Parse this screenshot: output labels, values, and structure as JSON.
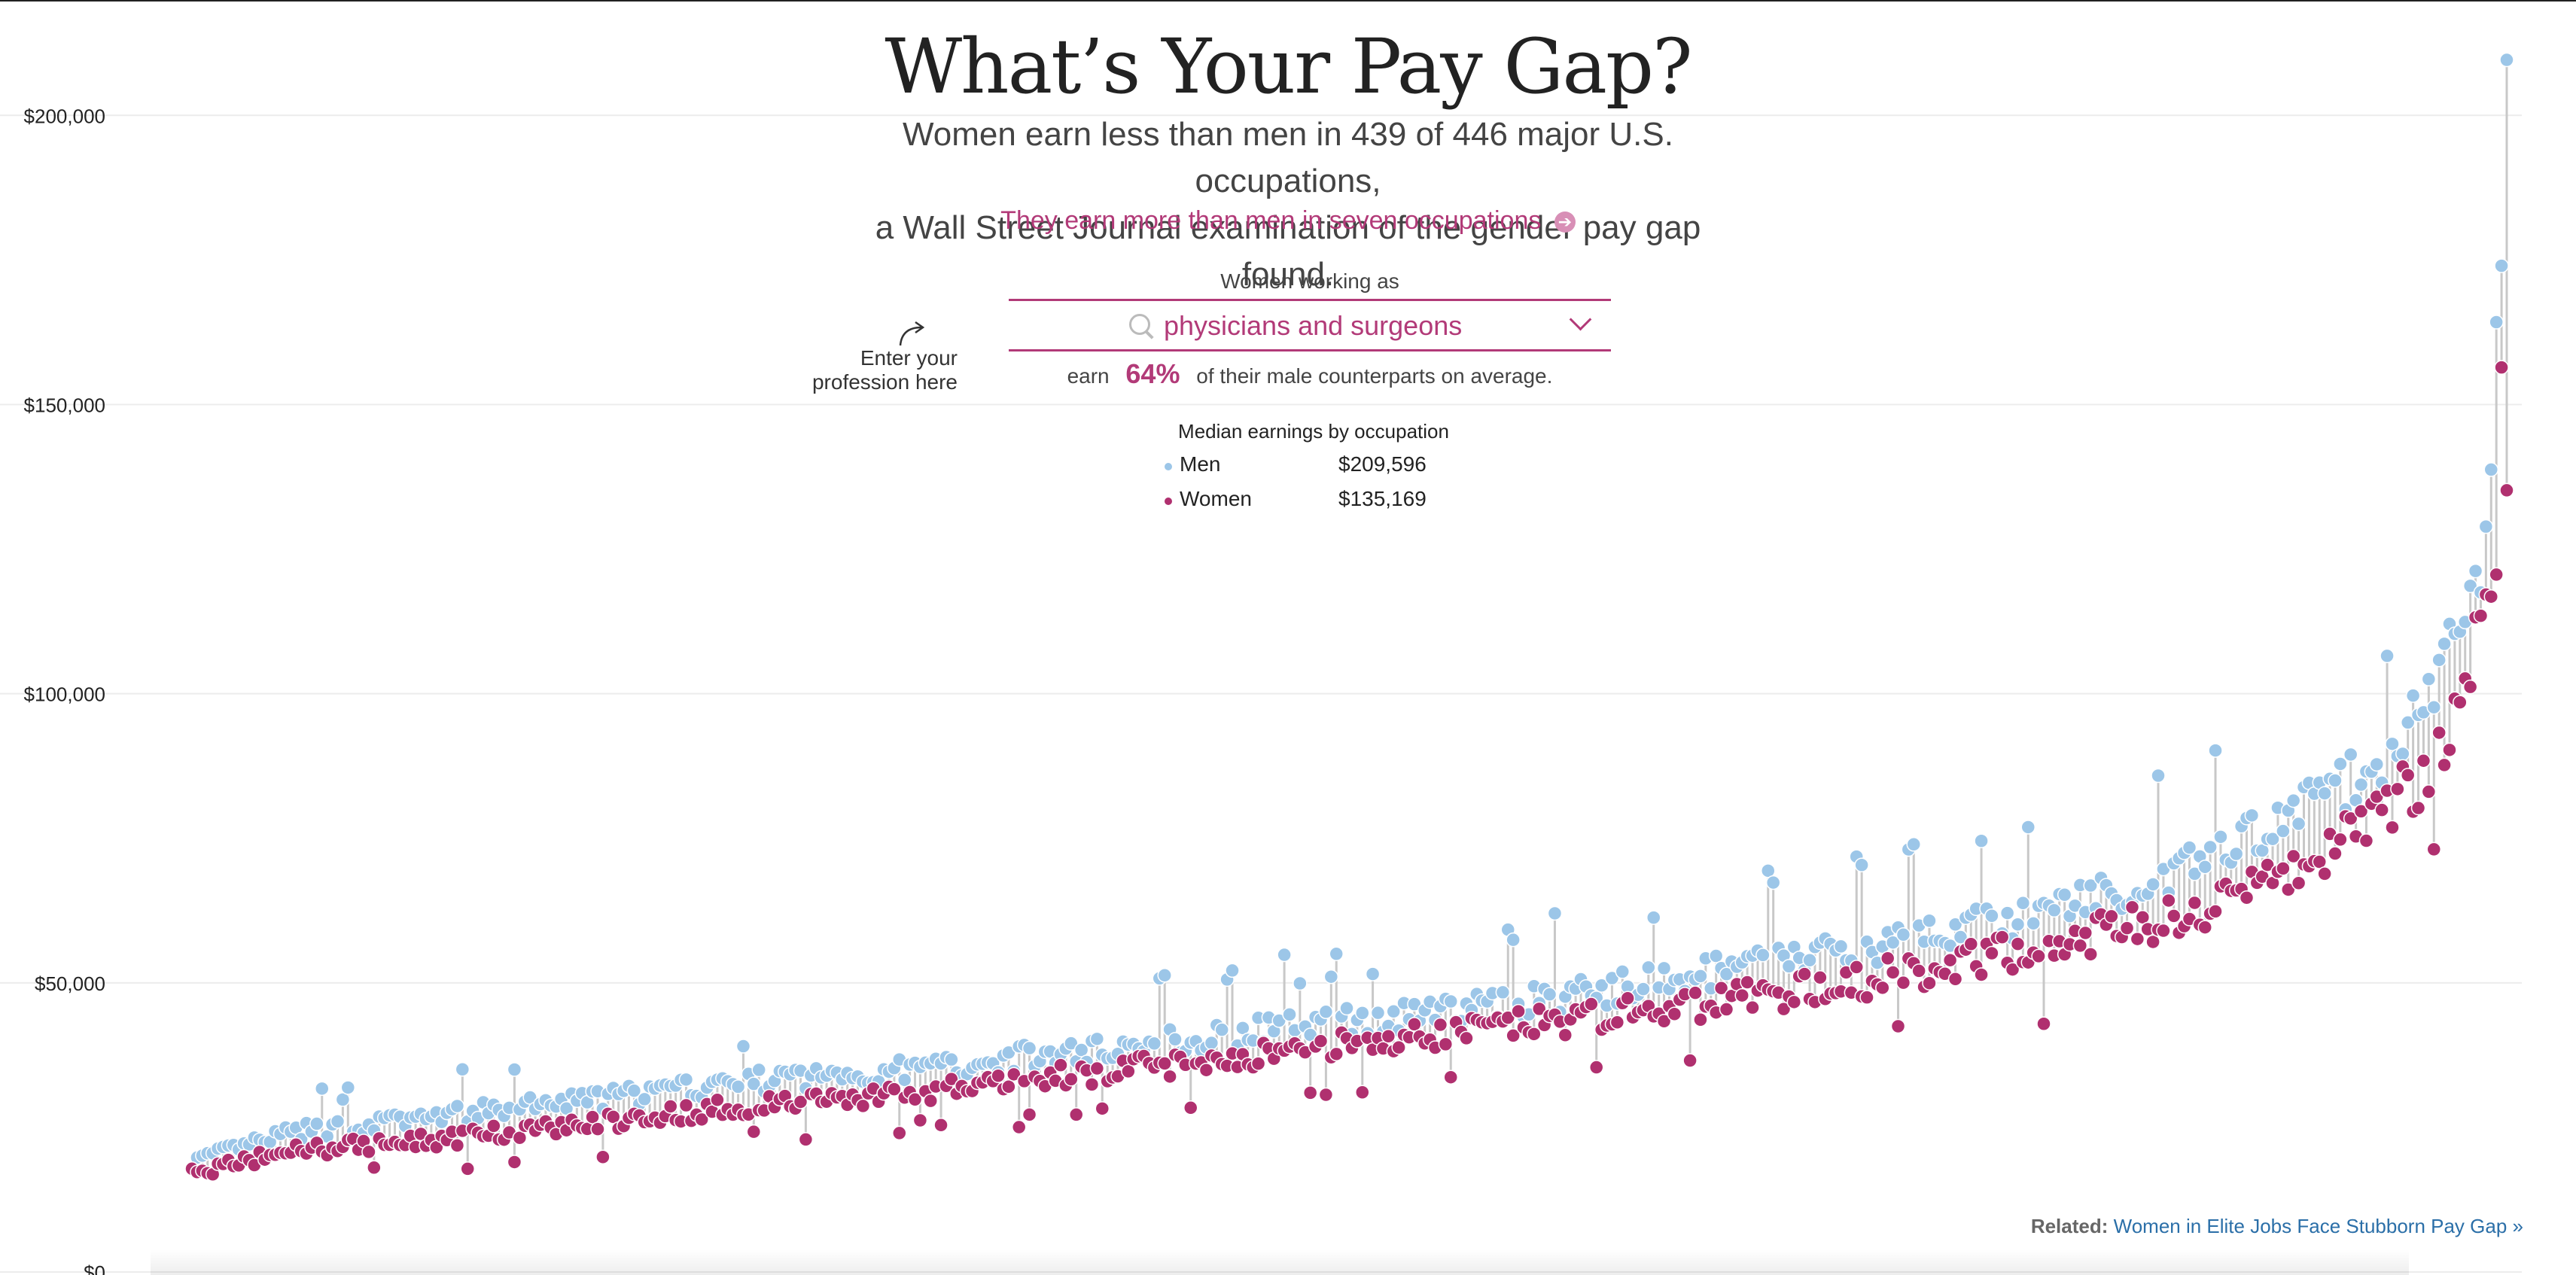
{
  "title": "What’s Your Pay Gap?",
  "subtitle_line1": "Women earn less than men in 439 of 446 major U.S. occupations,",
  "subtitle_line2": "a Wall Street Journal examination of the gender pay gap found.",
  "more_link": "They earn more than men in seven occupations",
  "selector": {
    "label": "Women working as",
    "value": "physicians and surgeons",
    "hint": "Enter your profession here"
  },
  "earn": {
    "before": "earn",
    "percent": "64%",
    "after": "of their male counterparts on average."
  },
  "legend": {
    "title": "Median earnings by occupation",
    "men_label": "Men",
    "men_value": "$209,596",
    "women_label": "Women",
    "women_value": "$135,169"
  },
  "related": {
    "label": "Related:",
    "link": "Women in Elite Jobs Face Stubborn Pay Gap »"
  },
  "colors": {
    "men": "#9cc6e8",
    "women": "#b0306f",
    "stem": "#c8c8c8",
    "accent": "#b23a78"
  },
  "chart_data": {
    "type": "scatter",
    "title": "What’s Your Pay Gap?",
    "ylabel": "",
    "xlabel": "",
    "ylim": [
      0,
      215000
    ],
    "yticks": [
      0,
      50000,
      100000,
      150000,
      200000
    ],
    "ytick_labels": [
      "$0",
      "$50,000",
      "$100,000",
      "$150,000",
      "$200,000"
    ],
    "grid": true,
    "n_occupations": 446,
    "highlight": {
      "index": 446,
      "men": 209596,
      "women": 135169
    },
    "series": [
      {
        "name": "Men",
        "key": "men",
        "anchors": [
          [
            1,
            19000
          ],
          [
            20,
            24000
          ],
          [
            50,
            27000
          ],
          [
            80,
            30000
          ],
          [
            110,
            33000
          ],
          [
            140,
            35000
          ],
          [
            170,
            38000
          ],
          [
            200,
            41000
          ],
          [
            230,
            44000
          ],
          [
            260,
            47000
          ],
          [
            290,
            51000
          ],
          [
            320,
            56000
          ],
          [
            350,
            61000
          ],
          [
            380,
            68000
          ],
          [
            400,
            76000
          ],
          [
            420,
            87000
          ],
          [
            432,
            100000
          ],
          [
            438,
            114000
          ],
          [
            442,
            125000
          ],
          [
            444,
            156000
          ],
          [
            445,
            170000
          ],
          [
            446,
            209596
          ]
        ]
      },
      {
        "name": "Women",
        "key": "women",
        "anchors": [
          [
            1,
            17000
          ],
          [
            20,
            21000
          ],
          [
            50,
            23000
          ],
          [
            80,
            26000
          ],
          [
            110,
            29000
          ],
          [
            140,
            31000
          ],
          [
            170,
            34000
          ],
          [
            200,
            37000
          ],
          [
            230,
            40000
          ],
          [
            260,
            43000
          ],
          [
            290,
            46000
          ],
          [
            320,
            50000
          ],
          [
            350,
            55000
          ],
          [
            380,
            61000
          ],
          [
            400,
            67000
          ],
          [
            420,
            77000
          ],
          [
            432,
            88000
          ],
          [
            438,
            102000
          ],
          [
            442,
            118000
          ],
          [
            444,
            119000
          ],
          [
            445,
            150000
          ],
          [
            446,
            135169
          ]
        ]
      }
    ]
  }
}
